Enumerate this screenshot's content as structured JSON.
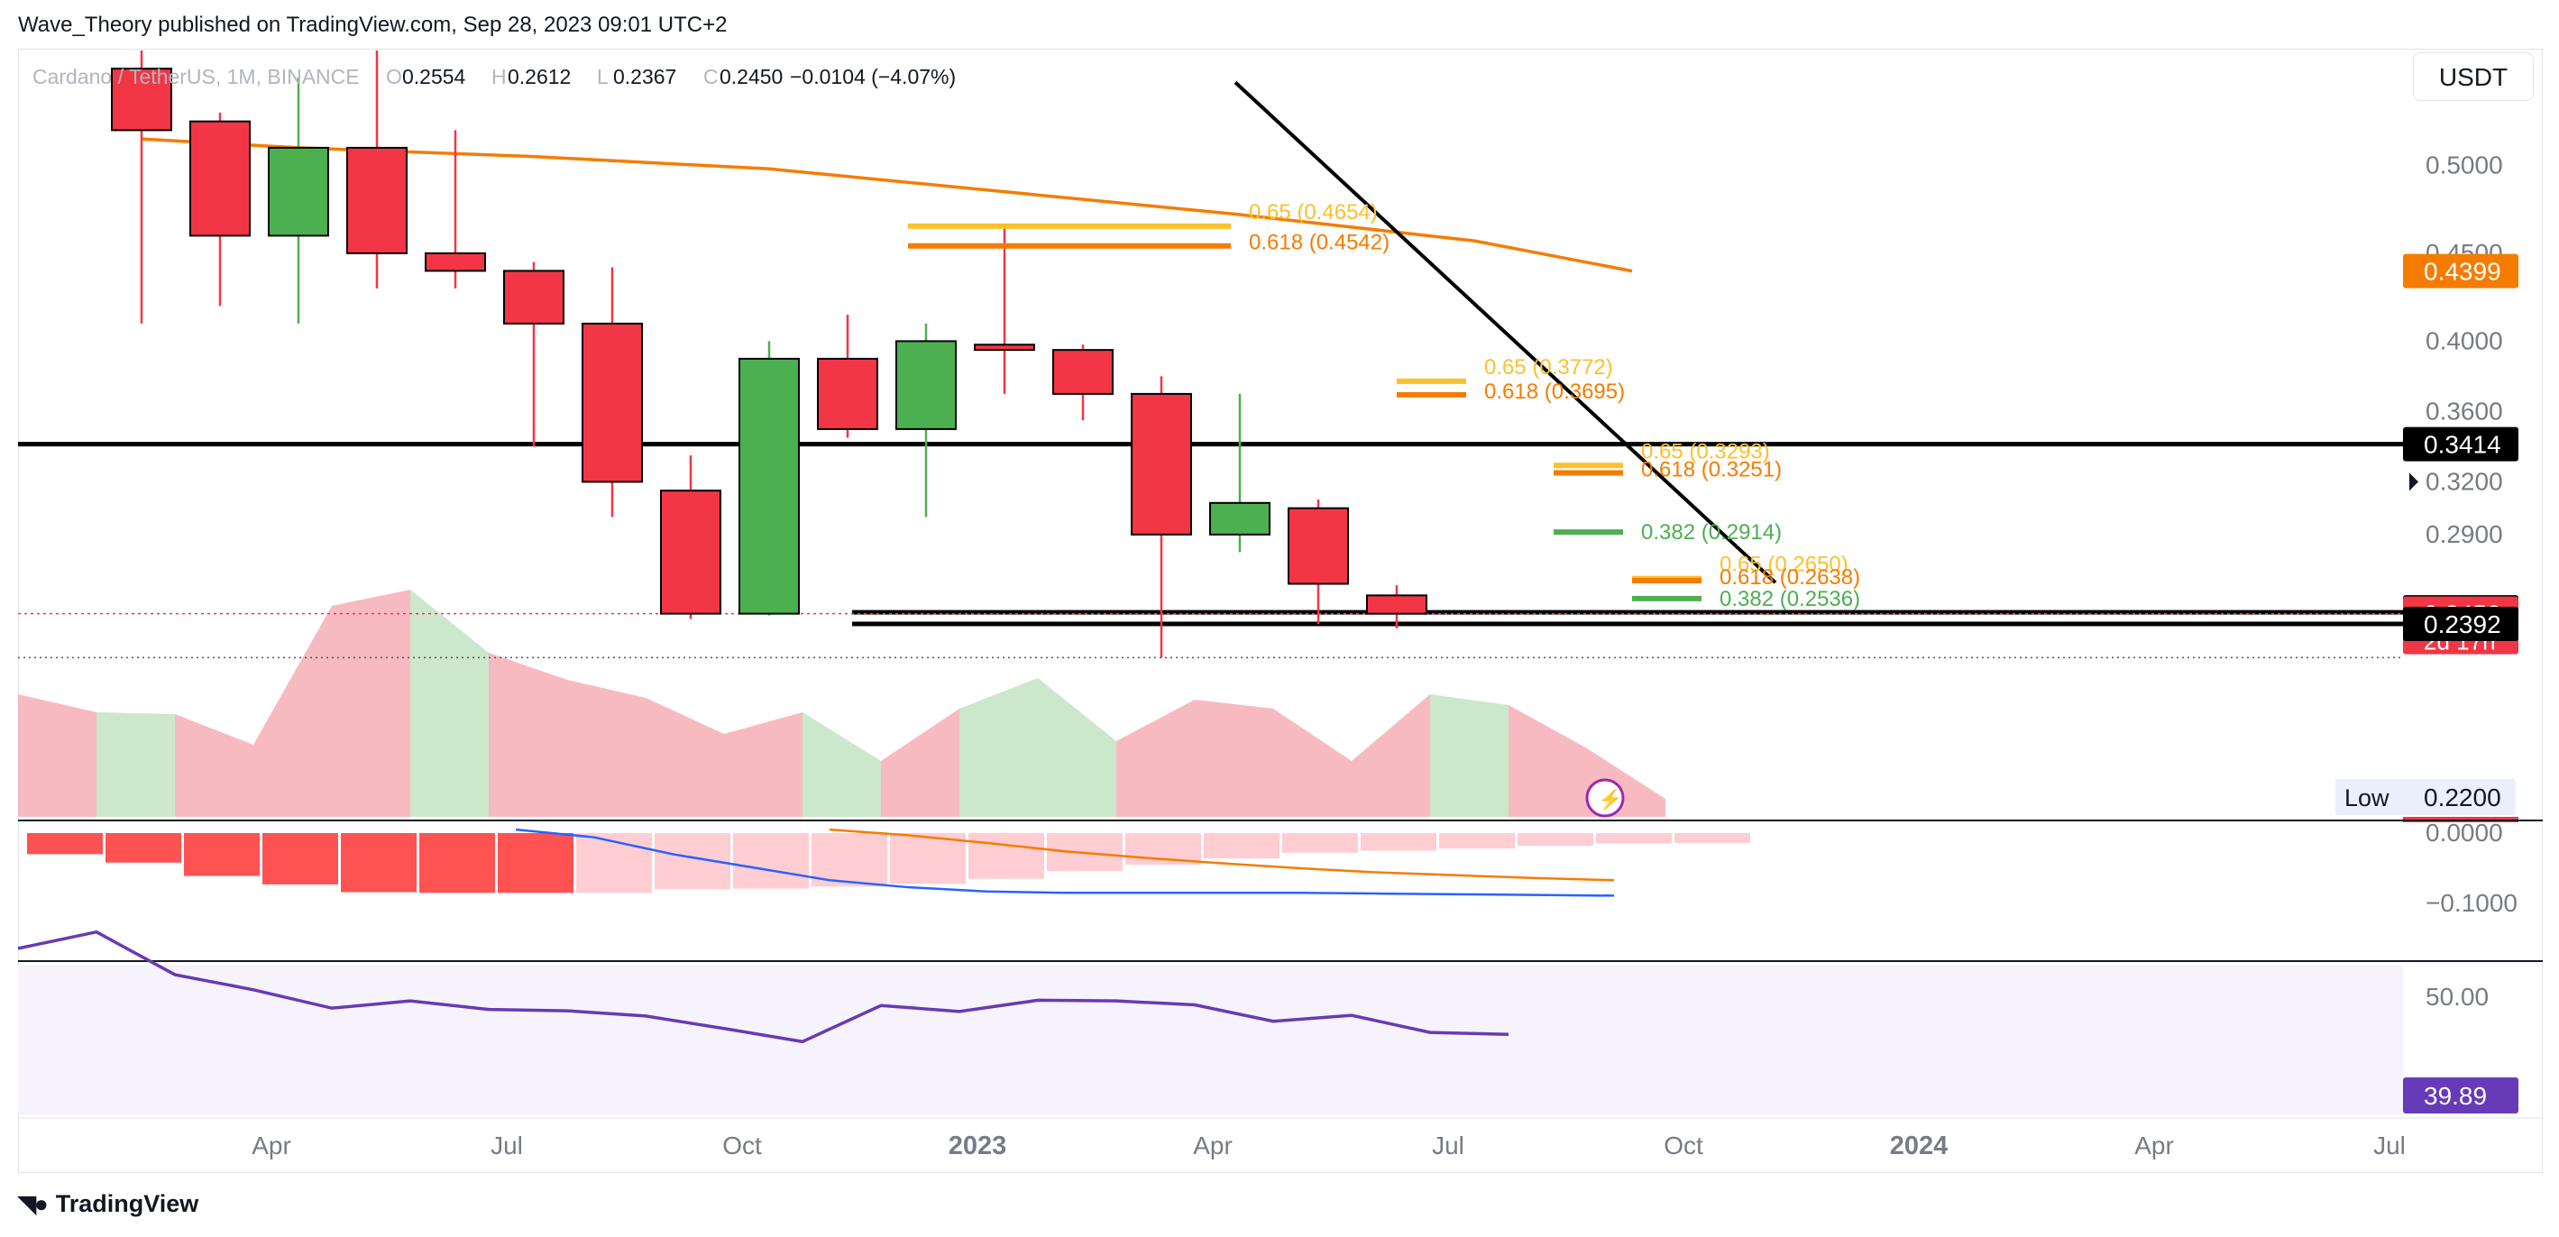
{
  "header": {
    "published": "Wave_Theory published on TradingView.com, Sep 28, 2023 09:01 UTC+2"
  },
  "legend": {
    "symbol": "Cardano / TetherUS, 1M, BINANCE",
    "o_label": "O",
    "o_value": "0.2554",
    "h_label": "H",
    "h_value": "0.2612",
    "l_label": "L",
    "l_value": "0.2367",
    "c_label": "C",
    "c_value": "0.2450",
    "change": "−0.0104 (−4.07%)"
  },
  "currency_button": "USDT",
  "footer": {
    "brand": "TradingView"
  },
  "colors": {
    "up": "#4caf50",
    "down": "#f23645",
    "ma": "#f57c00",
    "signal": "#2962ff",
    "rsi": "#673ab7",
    "fib_gold": "#fbc02d",
    "fib_orange": "#f57c00",
    "fib_green": "#4caf50",
    "hist_pos_up": "#c8e6c9",
    "hist_neg_down": "#f7b3ba",
    "macd_strong": "#ff5252",
    "macd_weak": "#ffcdd2"
  },
  "chart_data": {
    "type": "candlestick",
    "symbol": "Cardano / TetherUS",
    "interval": "1M",
    "exchange": "BINANCE",
    "x_ticks": [
      {
        "label": "Apr",
        "t": 3,
        "bold": false
      },
      {
        "label": "Jul",
        "t": 6,
        "bold": false
      },
      {
        "label": "Oct",
        "t": 9,
        "bold": false
      },
      {
        "label": "2023",
        "t": 12,
        "bold": true
      },
      {
        "label": "Apr",
        "t": 15,
        "bold": false
      },
      {
        "label": "Jul",
        "t": 18,
        "bold": false
      },
      {
        "label": "Oct",
        "t": 21,
        "bold": false
      },
      {
        "label": "2024",
        "t": 24,
        "bold": true
      },
      {
        "label": "Apr",
        "t": 27,
        "bold": false
      },
      {
        "label": "Jul",
        "t": 30,
        "bold": false
      }
    ],
    "y_ticks": [
      "0.5000",
      "0.4500",
      "0.4000",
      "0.3600",
      "0.3200",
      "0.2900"
    ],
    "candles": [
      {
        "month": "2022-05",
        "o": 0.555,
        "h": 0.61,
        "l": 0.41,
        "c": 0.52
      },
      {
        "month": "2022-06",
        "o": 0.525,
        "h": 0.53,
        "l": 0.42,
        "c": 0.46
      },
      {
        "month": "2022-07",
        "o": 0.46,
        "h": 0.55,
        "l": 0.41,
        "c": 0.51
      },
      {
        "month": "2022-08",
        "o": 0.51,
        "h": 0.59,
        "l": 0.43,
        "c": 0.45
      },
      {
        "month": "2022-09",
        "o": 0.45,
        "h": 0.52,
        "l": 0.43,
        "c": 0.44
      },
      {
        "month": "2022-10",
        "o": 0.44,
        "h": 0.445,
        "l": 0.34,
        "c": 0.41
      },
      {
        "month": "2022-11",
        "o": 0.41,
        "h": 0.442,
        "l": 0.3,
        "c": 0.32
      },
      {
        "month": "2022-12",
        "o": 0.315,
        "h": 0.335,
        "l": 0.242,
        "c": 0.245
      },
      {
        "month": "2023-01",
        "o": 0.245,
        "h": 0.4,
        "l": 0.244,
        "c": 0.39
      },
      {
        "month": "2023-02",
        "o": 0.39,
        "h": 0.415,
        "l": 0.345,
        "c": 0.35
      },
      {
        "month": "2023-03",
        "o": 0.35,
        "h": 0.41,
        "l": 0.3,
        "c": 0.4
      },
      {
        "month": "2023-04",
        "o": 0.398,
        "h": 0.464,
        "l": 0.37,
        "c": 0.395
      },
      {
        "month": "2023-05",
        "o": 0.395,
        "h": 0.398,
        "l": 0.355,
        "c": 0.37
      },
      {
        "month": "2023-06",
        "o": 0.37,
        "h": 0.38,
        "l": 0.22,
        "c": 0.29
      },
      {
        "month": "2023-07",
        "o": 0.29,
        "h": 0.37,
        "l": 0.28,
        "c": 0.308
      },
      {
        "month": "2023-08",
        "o": 0.305,
        "h": 0.31,
        "l": 0.239,
        "c": 0.262
      },
      {
        "month": "2023-09",
        "o": 0.2554,
        "h": 0.2612,
        "l": 0.2367,
        "c": 0.245
      }
    ],
    "moving_average": [
      {
        "t": 1,
        "v": 0.515
      },
      {
        "t": 3,
        "v": 0.51
      },
      {
        "t": 6,
        "v": 0.505
      },
      {
        "t": 9,
        "v": 0.498
      },
      {
        "t": 12,
        "v": 0.485
      },
      {
        "t": 15,
        "v": 0.472
      },
      {
        "t": 18,
        "v": 0.457
      },
      {
        "t": 20,
        "v": 0.4399
      }
    ],
    "horizontal_lines": [
      {
        "value": 0.3414,
        "label": "0.3414"
      },
      {
        "value": 0.2458,
        "label": "0.2458"
      },
      {
        "value": 0.2392,
        "label": "0.2392"
      }
    ],
    "trendline": [
      {
        "t": 15,
        "v": 0.46
      },
      {
        "t": 22,
        "v": 0.296
      }
    ],
    "fib_levels": [
      {
        "t0": 11,
        "t1": 15,
        "value": 0.4654,
        "text": "0.65 (0.4654)",
        "color": "gold"
      },
      {
        "t0": 11,
        "t1": 15,
        "value": 0.4542,
        "text": "0.618 (0.4542)",
        "color": "orange"
      },
      {
        "t0": 17,
        "t1": 18,
        "value": 0.3772,
        "text": "0.65 (0.3772)",
        "color": "gold"
      },
      {
        "t0": 17,
        "t1": 18,
        "value": 0.3695,
        "text": "0.618 (0.3695)",
        "color": "orange"
      },
      {
        "t0": 19,
        "t1": 20,
        "value": 0.3293,
        "text": "0.65 (0.3293)",
        "color": "gold"
      },
      {
        "t0": 19,
        "t1": 20,
        "value": 0.3251,
        "text": "0.618 (0.3251)",
        "color": "orange"
      },
      {
        "t0": 19,
        "t1": 20,
        "value": 0.2914,
        "text": "0.382 (0.2914)",
        "color": "green"
      },
      {
        "t0": 20,
        "t1": 21,
        "value": 0.265,
        "text": "0.65 (0.2650)",
        "color": "gold"
      },
      {
        "t0": 20,
        "t1": 21,
        "value": 0.2638,
        "text": "0.618 (0.2638)",
        "color": "orange"
      },
      {
        "t0": 20,
        "t1": 21,
        "value": 0.2536,
        "text": "0.382 (0.2536)",
        "color": "green"
      }
    ],
    "price_badges": [
      {
        "label": "0.4399",
        "value": 0.4399,
        "color": "#f57c00"
      },
      {
        "label": "0.3414",
        "value": 0.3414,
        "color": "#000000"
      },
      {
        "label": "0.3200",
        "value": 0.32,
        "color": "none"
      },
      {
        "label": "0.2458",
        "value": 0.2458,
        "color": "#000000"
      },
      {
        "label": "0.2450",
        "value": 0.245,
        "color": "#f23645",
        "sub": "2d 17h"
      },
      {
        "label": "0.2392",
        "value": 0.2392,
        "color": "#000000"
      }
    ],
    "low_badge": {
      "label": "Low",
      "value": "0.2200"
    },
    "macd": {
      "y_ticks": [
        "0.0000",
        "−0.1000"
      ],
      "histogram": [
        {
          "t": 0,
          "v": -0.03
        },
        {
          "t": 1,
          "v": -0.042
        },
        {
          "t": 2,
          "v": -0.061
        },
        {
          "t": 3,
          "v": -0.073
        },
        {
          "t": 4,
          "v": -0.084
        },
        {
          "t": 5,
          "v": -0.085
        },
        {
          "t": 6,
          "v": -0.085
        },
        {
          "t": 7,
          "v": -0.085
        },
        {
          "t": 8,
          "v": -0.08
        },
        {
          "t": 9,
          "v": -0.079
        },
        {
          "t": 10,
          "v": -0.076
        },
        {
          "t": 11,
          "v": -0.072
        },
        {
          "t": 12,
          "v": -0.065
        },
        {
          "t": 13,
          "v": -0.054
        },
        {
          "t": 14,
          "v": -0.045
        },
        {
          "t": 15,
          "v": -0.036
        },
        {
          "t": 16,
          "v": -0.028
        },
        {
          "t": 17,
          "v": -0.025
        },
        {
          "t": 18,
          "v": -0.022
        },
        {
          "t": 19,
          "v": -0.018
        },
        {
          "t": 20,
          "v": -0.015
        },
        {
          "t": 21,
          "v": -0.014
        }
      ],
      "macd_line": [
        {
          "t": 6,
          "v": 0.005
        },
        {
          "t": 7,
          "v": -0.006
        },
        {
          "t": 8,
          "v": -0.03
        },
        {
          "t": 10,
          "v": -0.067
        },
        {
          "t": 11,
          "v": -0.077
        },
        {
          "t": 12,
          "v": -0.083
        },
        {
          "t": 13,
          "v": -0.085
        },
        {
          "t": 14,
          "v": -0.085
        },
        {
          "t": 15,
          "v": -0.085
        },
        {
          "t": 16,
          "v": -0.085
        },
        {
          "t": 17,
          "v": -0.086
        },
        {
          "t": 18,
          "v": -0.087
        },
        {
          "t": 19,
          "v": -0.088
        },
        {
          "t": 20,
          "v": -0.089
        }
      ],
      "signal_line": [
        {
          "t": 10,
          "v": 0.005
        },
        {
          "t": 11,
          "v": -0.003
        },
        {
          "t": 12,
          "v": -0.014
        },
        {
          "t": 13,
          "v": -0.026
        },
        {
          "t": 14,
          "v": -0.035
        },
        {
          "t": 15,
          "v": -0.043
        },
        {
          "t": 16,
          "v": -0.05
        },
        {
          "t": 17,
          "v": -0.056
        },
        {
          "t": 18,
          "v": -0.06
        },
        {
          "t": 19,
          "v": -0.064
        },
        {
          "t": 20,
          "v": -0.067
        }
      ]
    },
    "momentum_area": [
      {
        "t": 0,
        "v": 0.068
      },
      {
        "t": 1,
        "v": 0.058
      },
      {
        "t": 2,
        "v": 0.057
      },
      {
        "t": 3,
        "v": 0.04
      },
      {
        "t": 4,
        "v": 0.117
      },
      {
        "t": 5,
        "v": 0.126
      },
      {
        "t": 6,
        "v": 0.091
      },
      {
        "t": 7,
        "v": 0.076
      },
      {
        "t": 8,
        "v": 0.066
      },
      {
        "t": 9,
        "v": 0.046
      },
      {
        "t": 10,
        "v": 0.058
      },
      {
        "t": 11,
        "v": 0.031
      },
      {
        "t": 12,
        "v": 0.06
      },
      {
        "t": 13,
        "v": 0.077
      },
      {
        "t": 14,
        "v": 0.042
      },
      {
        "t": 15,
        "v": 0.065
      },
      {
        "t": 16,
        "v": 0.06
      },
      {
        "t": 17,
        "v": 0.031
      },
      {
        "t": 18,
        "v": 0.068
      },
      {
        "t": 19,
        "v": 0.062
      },
      {
        "t": 20,
        "v": 0.038
      },
      {
        "t": 21,
        "v": 0.01
      }
    ],
    "rsi": {
      "y_tick": "50.00",
      "last_label": "39.89",
      "values": [
        {
          "t": 0,
          "v": 53.5
        },
        {
          "t": 1,
          "v": 56.0
        },
        {
          "t": 2,
          "v": 49.5
        },
        {
          "t": 3,
          "v": 47.2
        },
        {
          "t": 4,
          "v": 44.4
        },
        {
          "t": 5,
          "v": 45.5
        },
        {
          "t": 6,
          "v": 44.2
        },
        {
          "t": 7,
          "v": 44.0
        },
        {
          "t": 8,
          "v": 43.2
        },
        {
          "t": 9,
          "v": 41.3
        },
        {
          "t": 10,
          "v": 39.3
        },
        {
          "t": 11,
          "v": 44.8
        },
        {
          "t": 12,
          "v": 43.9
        },
        {
          "t": 13,
          "v": 45.6
        },
        {
          "t": 14,
          "v": 45.5
        },
        {
          "t": 15,
          "v": 44.9
        },
        {
          "t": 16,
          "v": 42.4
        },
        {
          "t": 17,
          "v": 43.3
        },
        {
          "t": 18,
          "v": 40.7
        },
        {
          "t": 19,
          "v": 40.4
        }
      ]
    }
  }
}
